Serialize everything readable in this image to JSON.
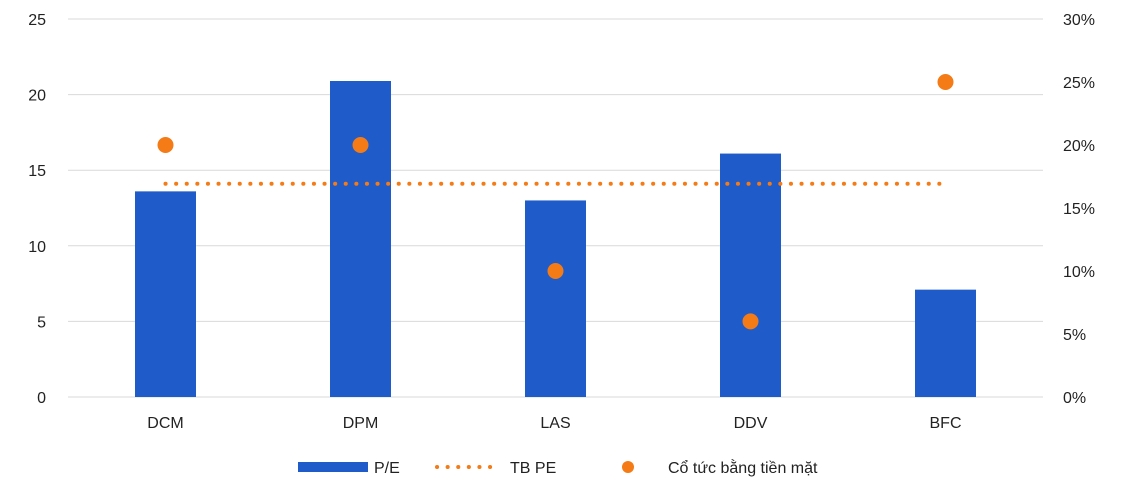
{
  "chart_data": {
    "type": "bar",
    "categories": [
      "DCM",
      "DPM",
      "LAS",
      "DDV",
      "BFC"
    ],
    "series": [
      {
        "name": "P/E",
        "kind": "bar",
        "axis": "left",
        "color": "#1F5BC9",
        "values": [
          13.6,
          20.9,
          13.0,
          16.1,
          7.1
        ]
      },
      {
        "name": "TB PE",
        "kind": "line-dotted",
        "axis": "left",
        "color": "#F47B16",
        "values": [
          14.1,
          14.1,
          14.1,
          14.1,
          14.1
        ]
      },
      {
        "name": "Cổ tức bằng tiền mặt",
        "kind": "scatter",
        "axis": "right",
        "color": "#F47B16",
        "values": [
          0.2,
          0.2,
          0.1,
          0.06,
          0.25
        ]
      }
    ],
    "left_axis": {
      "min": 0,
      "max": 25,
      "ticks": [
        "0",
        "5",
        "10",
        "15",
        "20",
        "25"
      ]
    },
    "right_axis": {
      "min": 0,
      "max": 0.3,
      "ticks": [
        "0%",
        "5%",
        "10%",
        "15%",
        "20%",
        "25%",
        "30%"
      ]
    },
    "grid": true,
    "legend_position": "bottom"
  }
}
